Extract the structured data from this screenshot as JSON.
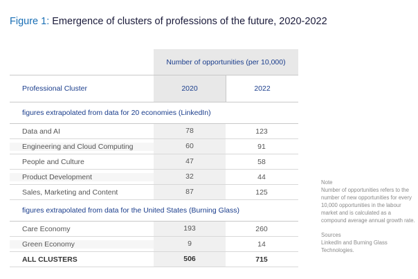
{
  "figure": {
    "label": "Figure 1:",
    "title": "Emergence of clusters of professions of the future, 2020-2022"
  },
  "table": {
    "opportunities_header": "Number of opportunities (per 10,000)",
    "col_cluster": "Professional Cluster",
    "col_2020": "2020",
    "col_2022": "2022",
    "section1": "figures extrapolated from data for 20 economies (LinkedIn)",
    "rows1": [
      {
        "name": "Data and AI",
        "v2020": "78",
        "v2022": "123"
      },
      {
        "name": "Engineering and Cloud Computing",
        "v2020": "60",
        "v2022": "91"
      },
      {
        "name": "People and Culture",
        "v2020": "47",
        "v2022": "58"
      },
      {
        "name": "Product Development",
        "v2020": "32",
        "v2022": "44"
      },
      {
        "name": "Sales, Marketing and Content",
        "v2020": "87",
        "v2022": "125"
      }
    ],
    "section2": "figures extrapolated from data for the United States (Burning Glass)",
    "rows2": [
      {
        "name": "Care Economy",
        "v2020": "193",
        "v2022": "260"
      },
      {
        "name": "Green Economy",
        "v2020": "9",
        "v2022": "14"
      }
    ],
    "total": {
      "name": "ALL CLUSTERS",
      "v2020": "506",
      "v2022": "715"
    }
  },
  "note": {
    "heading": "Note",
    "body": "Number of opportunities refers to the number of new opportunities for every 10,000 opportunities in the labour market and is calculated as a compound average annual growth rate.",
    "sources_heading": "Sources",
    "sources_body": "LinkedIn and Burning Glass Technologies."
  }
}
